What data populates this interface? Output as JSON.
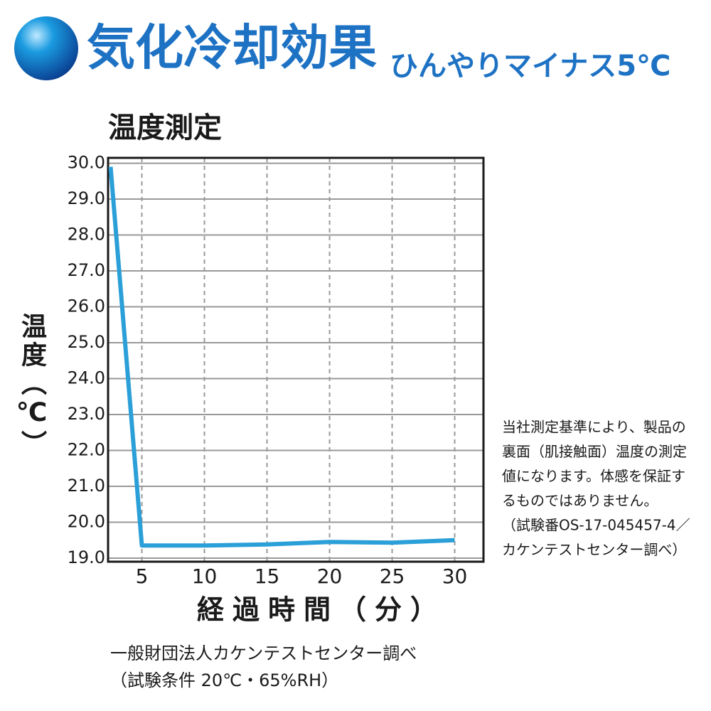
{
  "header": {
    "title": "気化冷却効果",
    "subtitle": "ひんやりマイナス5℃"
  },
  "chart_data": {
    "type": "line",
    "title": "温度測定",
    "y_label": "温度（℃）",
    "x_label": "経過時間（分）",
    "x": [
      2.5,
      5,
      10,
      15,
      20,
      25,
      30
    ],
    "series": [
      {
        "name": "温度",
        "color": "#2b9fd8",
        "values": [
          29.9,
          19.35,
          19.35,
          19.38,
          19.45,
          19.43,
          19.5
        ]
      }
    ],
    "xlim": [
      2.3,
      32.3
    ],
    "xticks": [
      5,
      10,
      15,
      20,
      25,
      30
    ],
    "ylim": [
      18.9,
      30.15
    ],
    "yticks": [
      {
        "value": 19,
        "label": "19.0"
      },
      {
        "value": 20,
        "label": "20.0"
      },
      {
        "value": 21,
        "label": "21.0"
      },
      {
        "value": 22,
        "label": "22.0"
      },
      {
        "value": 23,
        "label": "23.0"
      },
      {
        "value": 24,
        "label": "24.0"
      },
      {
        "value": 25,
        "label": "25.0"
      },
      {
        "value": 26,
        "label": "26.0"
      },
      {
        "value": 27,
        "label": "27.0"
      },
      {
        "value": 28,
        "label": "28.0"
      },
      {
        "value": 29,
        "label": "29.0"
      },
      {
        "value": 30,
        "label": "30.0"
      }
    ],
    "grid": true
  },
  "note": [
    "当社測定基準により、製品の",
    "裏面（肌接触面）温度の測定",
    "値になります。体感を保証す",
    "るものではありません。",
    "（試験番OS-17-045457-4／",
    "カケンテストセンター調べ）"
  ],
  "source": [
    "一般財団法人カケンテストセンター調べ",
    "（試験条件 20℃・65%RH）"
  ]
}
